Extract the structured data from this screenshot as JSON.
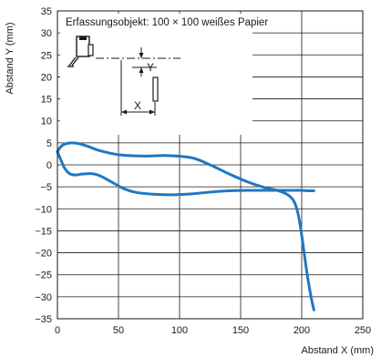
{
  "chart_data": {
    "type": "line",
    "xlabel": "Abstand X (mm)",
    "ylabel": "Abstand Y (mm)",
    "xlim": [
      0,
      250
    ],
    "ylim": [
      -35,
      35
    ],
    "x_ticks": [
      0,
      50,
      100,
      150,
      200,
      250
    ],
    "y_ticks": [
      35,
      30,
      25,
      20,
      15,
      10,
      5,
      0,
      -5,
      -10,
      -15,
      -20,
      -25,
      -30,
      -35
    ],
    "x_tick_labels": [
      "0",
      "50",
      "100",
      "150",
      "200",
      "250"
    ],
    "y_tick_labels": [
      "35",
      "30",
      "25",
      "20",
      "15",
      "10",
      "5",
      "0",
      "−5",
      "−10",
      "−15",
      "−20",
      "−25",
      "−30",
      "−35"
    ],
    "grid": true,
    "annotation": "Erfassungsobjekt: 100 × 100 weißes Papier",
    "diagram_labels": {
      "y": "Y",
      "x": "X"
    },
    "line_color": "#1f78c1",
    "series": [
      {
        "x": [
          0,
          3,
          7,
          12,
          18,
          25,
          35,
          50,
          70,
          90,
          110,
          125,
          140,
          155,
          170,
          180,
          188,
          193,
          196,
          198,
          200,
          202,
          204,
          206,
          208,
          210
        ],
        "y": [
          3,
          4.2,
          4.8,
          5,
          4.8,
          4.2,
          3.2,
          2.3,
          2,
          2.1,
          1.6,
          0,
          -2,
          -3.8,
          -5.2,
          -5.8,
          -6.7,
          -8,
          -10,
          -12.5,
          -16,
          -20,
          -24,
          -27.5,
          -30.5,
          -33
        ]
      },
      {
        "x": [
          0,
          3,
          6,
          10,
          15,
          20,
          28,
          35,
          45,
          55,
          65,
          80,
          95,
          110,
          125,
          140,
          155,
          170,
          185,
          195,
          200,
          205,
          210
        ],
        "y": [
          3,
          1,
          -0.8,
          -2,
          -2.3,
          -2.1,
          -2,
          -2.5,
          -4,
          -5.5,
          -6.3,
          -6.7,
          -6.8,
          -6.6,
          -6.2,
          -5.9,
          -5.8,
          -5.8,
          -5.8,
          -5.8,
          -5.8,
          -5.9,
          -5.9
        ]
      }
    ]
  }
}
